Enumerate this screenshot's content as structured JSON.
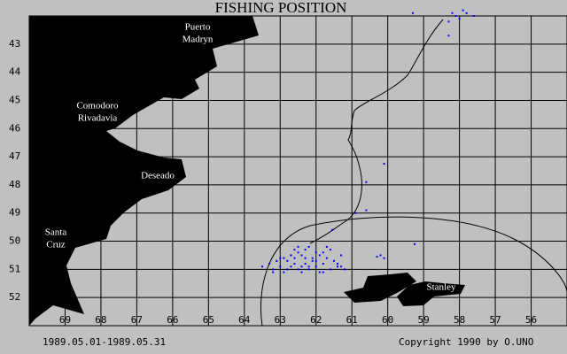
{
  "chart_data": {
    "type": "scatter",
    "title": "FISHING POSITION",
    "xlim": [
      70,
      55
    ],
    "ylim": [
      42,
      53
    ],
    "xticks": [
      69,
      68,
      67,
      66,
      65,
      64,
      63,
      62,
      61,
      60,
      59,
      58,
      57,
      56
    ],
    "yticks": [
      43,
      44,
      45,
      46,
      47,
      48,
      49,
      50,
      51,
      52
    ],
    "grid": true,
    "series": [
      {
        "name": "Fishing position",
        "color": "#0000ff",
        "x": [
          58.2,
          58.1,
          57.9,
          58.0,
          57.8,
          57.6,
          58.3,
          59.3,
          58.3,
          60.1,
          60.6,
          60.9,
          60.6,
          59.25,
          60.2,
          60.1,
          60.3,
          61.55,
          63.5,
          63.3,
          63.2,
          63.1,
          63.0,
          62.9,
          62.8,
          62.7,
          62.6,
          62.5,
          62.4,
          62.3,
          62.2,
          62.1,
          62.0,
          61.9,
          61.8,
          61.7,
          61.6,
          61.5,
          61.4,
          61.3,
          61.2,
          63.0,
          62.8,
          62.6,
          62.4,
          62.2,
          62.0,
          61.8,
          61.6,
          61.4,
          62.9,
          62.7,
          62.5,
          62.3,
          62.1,
          61.9,
          61.7,
          62.6,
          62.4,
          62.2,
          62.0,
          62.3,
          62.5,
          61.8,
          62.7,
          63.2,
          61.3
        ],
        "y": [
          41.9,
          42.0,
          41.8,
          42.1,
          41.9,
          42.0,
          42.2,
          41.9,
          42.7,
          47.25,
          47.9,
          49.0,
          48.9,
          50.1,
          50.5,
          50.6,
          50.55,
          49.6,
          50.9,
          50.8,
          51.0,
          50.7,
          50.9,
          50.6,
          51.0,
          50.5,
          50.8,
          50.4,
          50.9,
          50.6,
          51.0,
          50.7,
          50.9,
          50.5,
          50.8,
          50.6,
          51.0,
          50.7,
          50.9,
          50.5,
          51.0,
          50.6,
          50.7,
          50.3,
          51.1,
          50.2,
          50.4,
          51.1,
          50.3,
          50.8,
          51.1,
          50.9,
          51.0,
          50.8,
          50.6,
          51.1,
          50.2,
          50.6,
          50.5,
          50.9,
          50.7,
          50.3,
          50.2,
          50.4,
          50.5,
          51.1,
          50.9
        ]
      }
    ],
    "places": [
      "Puerto",
      "Madryn",
      "Comodoro",
      "Rivadavia",
      "Deseado",
      "Santa",
      "Cruz",
      "Stanley"
    ],
    "period": "1989.05.01-1989.05.31",
    "copyright": "Copyright 1990 by O.UNO"
  }
}
